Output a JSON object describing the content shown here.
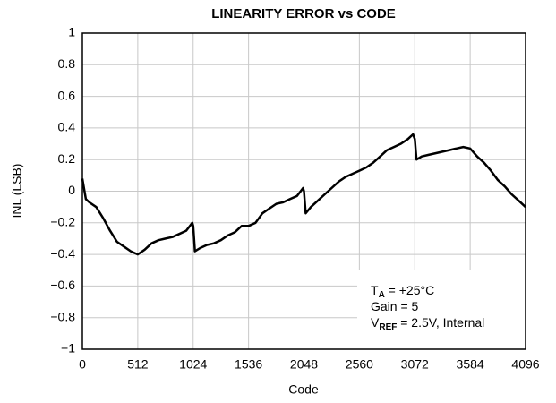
{
  "chart_data": {
    "type": "line",
    "title": "LINEARITY ERROR vs CODE",
    "xlabel": "Code",
    "ylabel": "INL (LSB)",
    "xlim": [
      0,
      4096
    ],
    "ylim": [
      -1,
      1
    ],
    "xticks": [
      0,
      512,
      1024,
      1536,
      2048,
      2560,
      3072,
      3584,
      4096
    ],
    "yticks": [
      {
        "value": -1,
        "label": "−1"
      },
      {
        "value": -0.8,
        "label": "−0.8"
      },
      {
        "value": -0.6,
        "label": "−0.6"
      },
      {
        "value": -0.4,
        "label": "−0.4"
      },
      {
        "value": -0.2,
        "label": "−0.2"
      },
      0,
      0.2,
      0.4,
      0.6,
      0.8,
      1
    ],
    "grid": true,
    "annotation": {
      "lines": [
        {
          "main": "T",
          "sub": "A",
          "rest": " = +25°C"
        },
        {
          "main": "Gain = 5"
        },
        {
          "main": "V",
          "sub": "REF",
          "rest": " = 2.5V, Internal"
        }
      ]
    },
    "series": [
      {
        "color": "#000000",
        "x": [
          0,
          32,
          64,
          128,
          192,
          256,
          320,
          384,
          448,
          512,
          576,
          640,
          704,
          768,
          832,
          896,
          960,
          1016,
          1024,
          1040,
          1088,
          1152,
          1216,
          1280,
          1344,
          1408,
          1472,
          1536,
          1600,
          1664,
          1728,
          1792,
          1856,
          1920,
          1984,
          2040,
          2048,
          2064,
          2112,
          2176,
          2240,
          2304,
          2368,
          2432,
          2496,
          2560,
          2624,
          2688,
          2752,
          2816,
          2880,
          2944,
          3008,
          3056,
          3072,
          3088,
          3136,
          3200,
          3264,
          3328,
          3392,
          3456,
          3520,
          3584,
          3648,
          3712,
          3776,
          3840,
          3904,
          3968,
          4032,
          4096
        ],
        "values": [
          0.08,
          -0.05,
          -0.07,
          -0.1,
          -0.17,
          -0.25,
          -0.32,
          -0.35,
          -0.38,
          -0.4,
          -0.37,
          -0.33,
          -0.31,
          -0.3,
          -0.29,
          -0.27,
          -0.25,
          -0.2,
          -0.22,
          -0.38,
          -0.36,
          -0.34,
          -0.33,
          -0.31,
          -0.28,
          -0.26,
          -0.22,
          -0.22,
          -0.2,
          -0.14,
          -0.11,
          -0.08,
          -0.07,
          -0.05,
          -0.03,
          0.02,
          0.0,
          -0.14,
          -0.1,
          -0.06,
          -0.02,
          0.02,
          0.06,
          0.09,
          0.11,
          0.13,
          0.15,
          0.18,
          0.22,
          0.26,
          0.28,
          0.3,
          0.33,
          0.36,
          0.33,
          0.2,
          0.22,
          0.23,
          0.24,
          0.25,
          0.26,
          0.27,
          0.28,
          0.27,
          0.22,
          0.18,
          0.13,
          0.07,
          0.03,
          -0.02,
          -0.06,
          -0.1
        ]
      }
    ]
  }
}
